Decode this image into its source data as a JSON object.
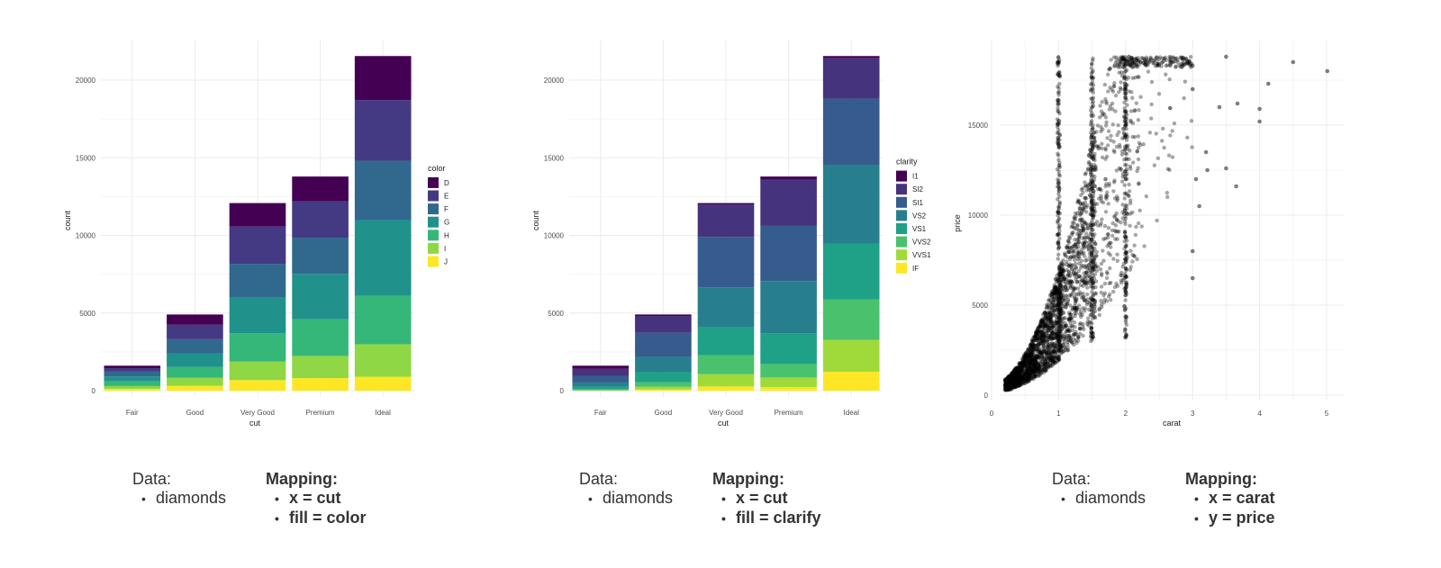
{
  "colors": {
    "viridis7": [
      "#440154",
      "#443983",
      "#31688E",
      "#21918C",
      "#35B779",
      "#8FD744",
      "#FDE725"
    ],
    "viridis8": [
      "#440154",
      "#46337E",
      "#365C8D",
      "#277F8E",
      "#1FA187",
      "#4AC16D",
      "#9FDA3A",
      "#FDE725"
    ],
    "point": "#000000",
    "grid": "#ebebeb"
  },
  "chart_data": [
    {
      "type": "bar",
      "stacked": true,
      "xlabel": "cut",
      "ylabel": "count",
      "categories": [
        "Fair",
        "Good",
        "Very Good",
        "Premium",
        "Ideal"
      ],
      "ylim": [
        0,
        22000
      ],
      "yticks": [
        0,
        5000,
        10000,
        15000,
        20000
      ],
      "yticklabels": [
        "0",
        "5000",
        "10000",
        "15000",
        "20000"
      ],
      "legend": {
        "title": "color",
        "position": "right"
      },
      "grid": true,
      "series": [
        {
          "name": "D",
          "values": [
            163,
            662,
            1513,
            1603,
            2834
          ]
        },
        {
          "name": "E",
          "values": [
            224,
            933,
            2400,
            2337,
            3903
          ]
        },
        {
          "name": "F",
          "values": [
            312,
            909,
            2164,
            2331,
            3826
          ]
        },
        {
          "name": "G",
          "values": [
            314,
            871,
            2299,
            2924,
            4884
          ]
        },
        {
          "name": "H",
          "values": [
            303,
            702,
            1824,
            2360,
            3115
          ]
        },
        {
          "name": "I",
          "values": [
            175,
            522,
            1204,
            1428,
            2093
          ]
        },
        {
          "name": "J",
          "values": [
            119,
            307,
            678,
            808,
            896
          ]
        }
      ]
    },
    {
      "type": "bar",
      "stacked": true,
      "xlabel": "cut",
      "ylabel": "count",
      "categories": [
        "Fair",
        "Good",
        "Very Good",
        "Premium",
        "Ideal"
      ],
      "ylim": [
        0,
        22000
      ],
      "yticks": [
        0,
        5000,
        10000,
        15000,
        20000
      ],
      "yticklabels": [
        "0",
        "5000",
        "10000",
        "15000",
        "20000"
      ],
      "legend": {
        "title": "clarity",
        "position": "right"
      },
      "grid": true,
      "series": [
        {
          "name": "I1",
          "values": [
            210,
            96,
            84,
            205,
            146
          ]
        },
        {
          "name": "SI2",
          "values": [
            466,
            1081,
            2100,
            2949,
            2598
          ]
        },
        {
          "name": "SI1",
          "values": [
            408,
            1560,
            3240,
            3575,
            4282
          ]
        },
        {
          "name": "VS2",
          "values": [
            261,
            978,
            2591,
            3357,
            5071
          ]
        },
        {
          "name": "VS1",
          "values": [
            170,
            648,
            1775,
            1989,
            3589
          ]
        },
        {
          "name": "VVS2",
          "values": [
            69,
            286,
            1235,
            870,
            2606
          ]
        },
        {
          "name": "VVS1",
          "values": [
            17,
            186,
            789,
            616,
            2047
          ]
        },
        {
          "name": "IF",
          "values": [
            9,
            71,
            268,
            230,
            1212
          ]
        }
      ]
    },
    {
      "type": "scatter",
      "xlabel": "carat",
      "ylabel": "price",
      "xlim": [
        0,
        5.2
      ],
      "ylim": [
        0,
        18900
      ],
      "xticks": [
        0,
        1,
        2,
        3,
        4,
        5
      ],
      "xticklabels": [
        "0",
        "1",
        "2",
        "3",
        "4",
        "5"
      ],
      "yticks": [
        0,
        5000,
        10000,
        15000
      ],
      "yticklabels": [
        "0",
        "5000",
        "10000",
        "15000"
      ],
      "grid": true,
      "points": [
        [
          0.23,
          326
        ],
        [
          0.3,
          450
        ],
        [
          0.4,
          900
        ],
        [
          0.5,
          1500
        ],
        [
          0.6,
          2000
        ],
        [
          0.7,
          2800
        ],
        [
          0.8,
          3200
        ],
        [
          0.9,
          4000
        ],
        [
          1.0,
          5000
        ],
        [
          1.1,
          6000
        ],
        [
          1.2,
          7000
        ],
        [
          1.3,
          8500
        ],
        [
          1.5,
          10000
        ],
        [
          1.7,
          12000
        ],
        [
          2.0,
          15000
        ],
        [
          2.05,
          18800
        ],
        [
          3.0,
          18300
        ],
        [
          3.0,
          17000
        ],
        [
          3.0,
          8000
        ],
        [
          3.0,
          6500
        ],
        [
          3.05,
          12000
        ],
        [
          3.1,
          10500
        ],
        [
          3.2,
          13500
        ],
        [
          3.22,
          12500
        ],
        [
          3.4,
          16000
        ],
        [
          3.5,
          18800
        ],
        [
          3.5,
          12600
        ],
        [
          3.65,
          11600
        ],
        [
          3.67,
          16200
        ],
        [
          4.0,
          15900
        ],
        [
          4.0,
          15200
        ],
        [
          4.13,
          17300
        ],
        [
          4.5,
          18500
        ],
        [
          5.01,
          18000
        ]
      ]
    }
  ],
  "captions": [
    {
      "data_label": "Data:",
      "data_items": [
        "diamonds"
      ],
      "mapping_label": "Mapping:",
      "mapping_items": [
        "x = cut",
        "fill = color"
      ]
    },
    {
      "data_label": "Data:",
      "data_items": [
        "diamonds"
      ],
      "mapping_label": "Mapping:",
      "mapping_items": [
        "x = cut",
        "fill = clarify"
      ]
    },
    {
      "data_label": "Data:",
      "data_items": [
        "diamonds"
      ],
      "mapping_label": "Mapping:",
      "mapping_items": [
        "x = carat",
        "y = price"
      ]
    }
  ],
  "bullet": "•"
}
